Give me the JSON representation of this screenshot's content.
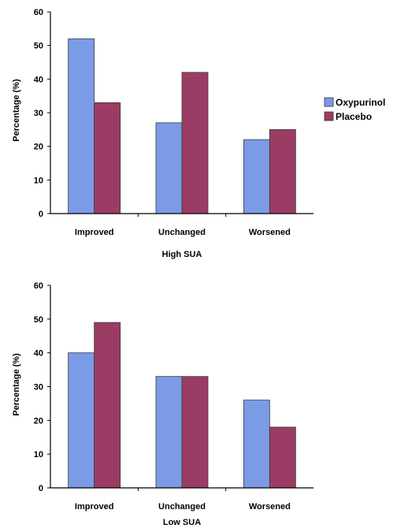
{
  "chart_data": [
    {
      "type": "bar",
      "title": "",
      "xlabel": "High SUA",
      "ylabel": "Percentage (%)",
      "categories": [
        "Improved",
        "Unchanged",
        "Worsened"
      ],
      "ylim": [
        0,
        60
      ],
      "yticks": [
        "0",
        "10",
        "20",
        "30",
        "40",
        "50",
        "60"
      ],
      "series": [
        {
          "name": "Oxypurinol",
          "values": [
            52,
            27,
            22
          ],
          "color": "#7b9be6"
        },
        {
          "name": "Placebo",
          "values": [
            33,
            42,
            25
          ],
          "color": "#9b3c64"
        }
      ],
      "legend": "right",
      "grid": false
    },
    {
      "type": "bar",
      "title": "",
      "xlabel": "Low SUA",
      "ylabel": "Percentage (%)",
      "categories": [
        "Improved",
        "Unchanged",
        "Worsened"
      ],
      "ylim": [
        0,
        60
      ],
      "yticks": [
        "0",
        "10",
        "20",
        "30",
        "40",
        "50",
        "60"
      ],
      "series": [
        {
          "name": "Oxypurinol",
          "values": [
            40,
            33,
            26
          ],
          "color": "#7b9be6"
        },
        {
          "name": "Placebo",
          "values": [
            49,
            33,
            18
          ],
          "color": "#9b3c64"
        }
      ],
      "legend": "none",
      "grid": false
    }
  ]
}
